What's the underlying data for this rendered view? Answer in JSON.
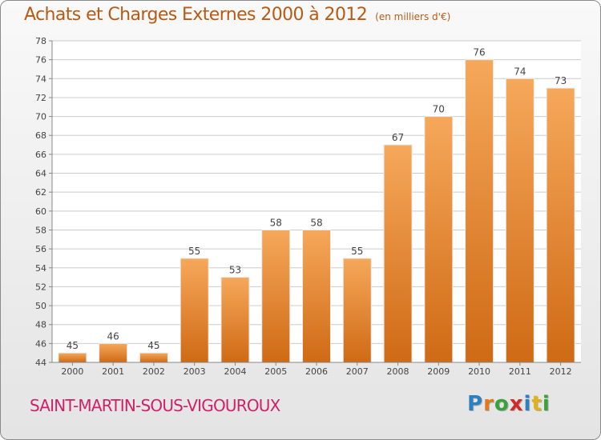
{
  "title": "Achats et Charges Externes 2000 à 2012",
  "unit_note": "(en milliers d'€)",
  "commune": "SAINT-MARTIN-SOUS-VIGOUROUX",
  "brand": {
    "letters": [
      "P",
      "r",
      "o",
      "x",
      "i",
      "t",
      "i"
    ],
    "colors": [
      "#2e7fc0",
      "#e07a1a",
      "#3aa23a",
      "#d22a2a",
      "#2e7fc0",
      "#e0b21a",
      "#3aa23a"
    ]
  },
  "colors": {
    "bar_top": "#f6a85a",
    "bar_bottom": "#cf6a15",
    "title": "#b85a14",
    "commune": "#d0206a",
    "grid": "#cccccc"
  },
  "chart_data": {
    "type": "bar",
    "title": "Achats et Charges Externes 2000 à 2012",
    "subtitle": "(en milliers d'€)",
    "categories": [
      "2000",
      "2001",
      "2002",
      "2003",
      "2004",
      "2005",
      "2006",
      "2007",
      "2008",
      "2009",
      "2010",
      "2011",
      "2012"
    ],
    "values": [
      45,
      46,
      45,
      55,
      53,
      58,
      58,
      55,
      67,
      70,
      76,
      74,
      73
    ],
    "ylim": [
      44,
      78
    ],
    "yticks": [
      44,
      46,
      48,
      50,
      52,
      54,
      56,
      58,
      60,
      62,
      64,
      66,
      68,
      70,
      72,
      74,
      76,
      78
    ],
    "grid": true,
    "xlabel": "",
    "ylabel": ""
  }
}
